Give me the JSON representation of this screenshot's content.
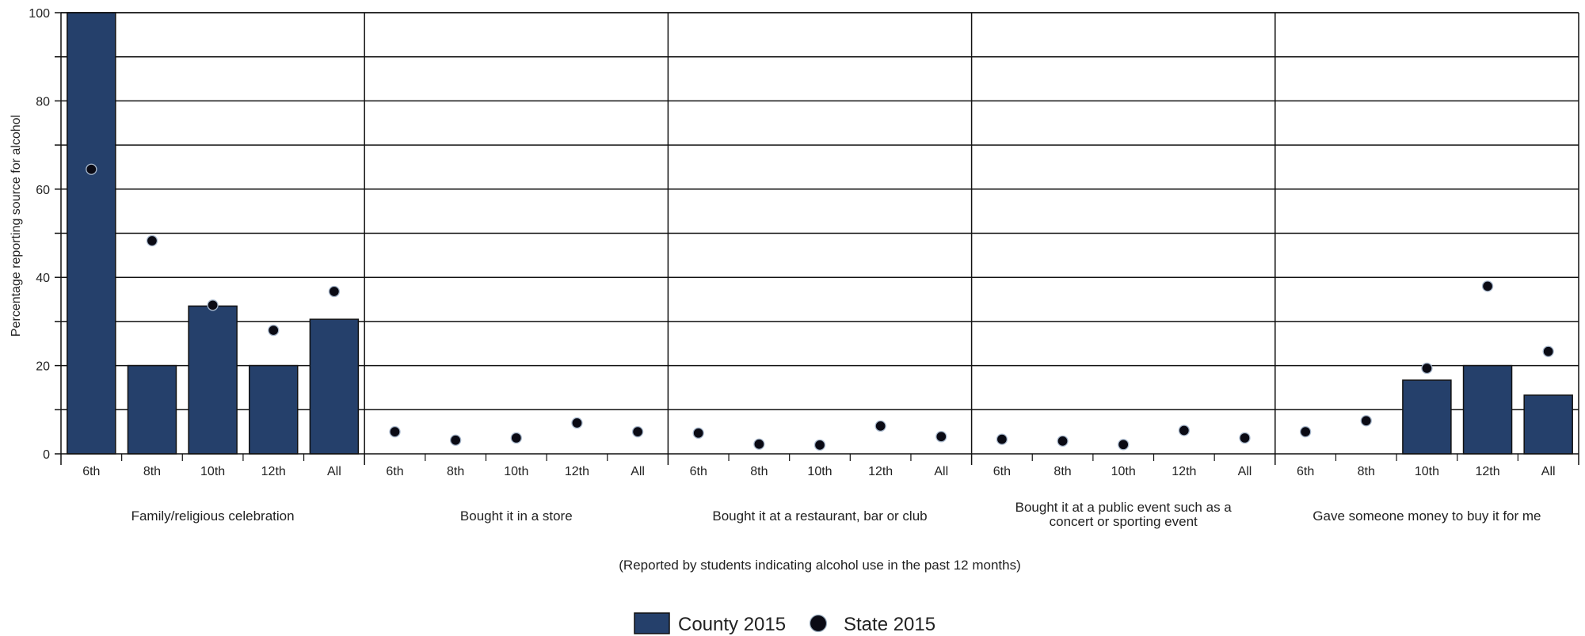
{
  "chart_data": {
    "type": "bar",
    "ylabel": "Percentage reporting source for alcohol",
    "xlabel": "(Reported by students indicating alcohol use in the past 12 months)",
    "ylim": [
      0,
      100
    ],
    "yticks": [
      0,
      20,
      40,
      60,
      80,
      100
    ],
    "grid": true,
    "legend_position": "bottom",
    "subcategories": [
      "6th",
      "8th",
      "10th",
      "12th",
      "All"
    ],
    "groups": [
      {
        "label": [
          "Family/religious celebration"
        ],
        "county": [
          100,
          20,
          33.5,
          20,
          30.5
        ],
        "state": [
          64.5,
          48.3,
          33.7,
          28,
          36.8
        ]
      },
      {
        "label": [
          "Bought it in a store"
        ],
        "county": [
          0,
          0,
          0,
          0,
          0
        ],
        "state": [
          5,
          3.1,
          3.6,
          7,
          5
        ]
      },
      {
        "label": [
          "Bought it at a restaurant, bar or club"
        ],
        "county": [
          0,
          0,
          0,
          0,
          0
        ],
        "state": [
          4.7,
          2.2,
          2,
          6.3,
          3.9
        ]
      },
      {
        "label": [
          "Bought it at a public event such as a",
          "concert or sporting event"
        ],
        "county": [
          0,
          0,
          0,
          0,
          0
        ],
        "state": [
          3.3,
          2.9,
          2.1,
          5.3,
          3.6
        ]
      },
      {
        "label": [
          "Gave someone money to buy it for me"
        ],
        "county": [
          0,
          0,
          16.7,
          20,
          13.3
        ],
        "state": [
          5,
          7.5,
          19.4,
          38,
          23.2
        ]
      }
    ],
    "series": [
      {
        "name": "County 2015",
        "kind": "bar",
        "color": "#25406b"
      },
      {
        "name": "State 2015",
        "kind": "dot",
        "color": "#0a0a14"
      }
    ]
  }
}
